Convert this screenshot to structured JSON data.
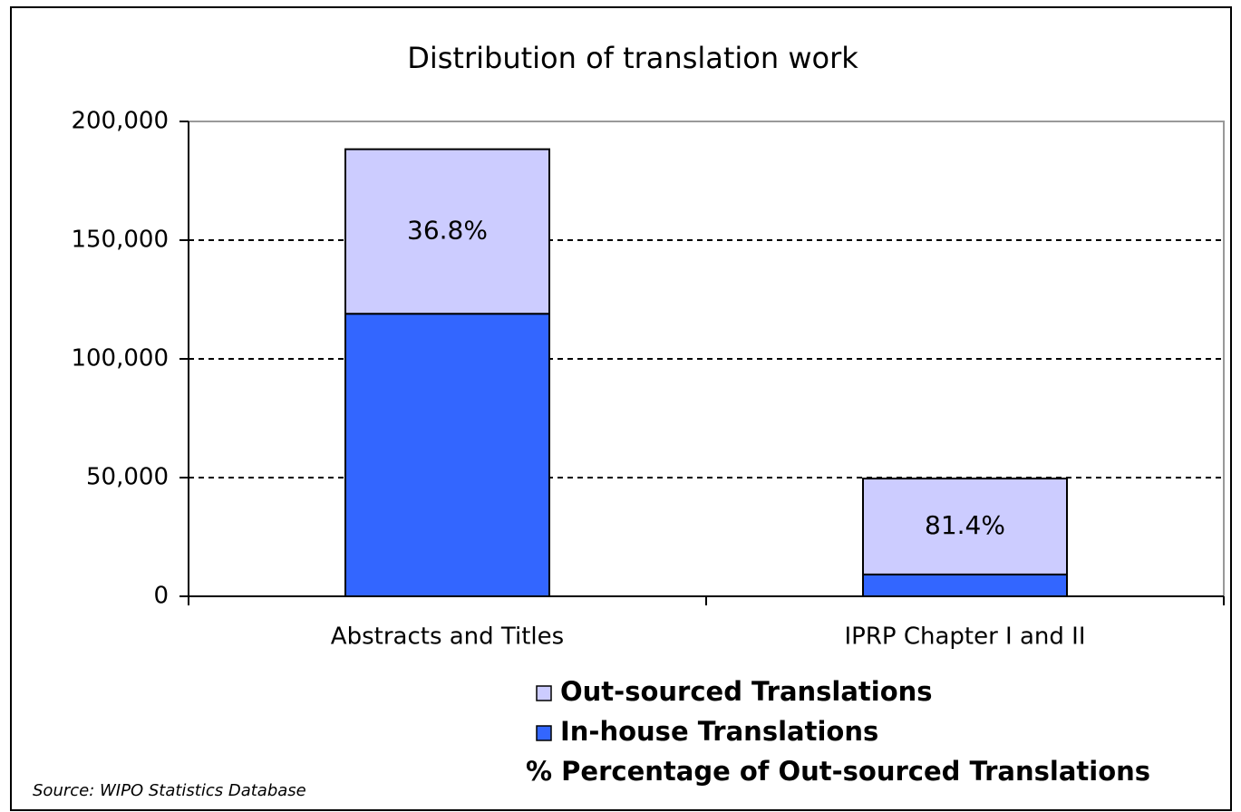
{
  "chart_data": {
    "type": "stacked_bar",
    "title": "Distribution of translation work",
    "categories": [
      "Abstracts and Titles",
      "IPRP Chapter I and II"
    ],
    "series": [
      {
        "name": "In-house Translations",
        "color": "#3366ff",
        "values": [
          119000,
          9200
        ]
      },
      {
        "name": "Out-sourced Translations",
        "color": "#ccccff",
        "values": [
          69300,
          40400
        ]
      }
    ],
    "percentages": {
      "name": "% Percentage of Out-sourced Translations",
      "values": [
        36.8,
        81.4
      ],
      "value_labels": [
        "36.8%",
        "81.4%"
      ]
    },
    "ylim": [
      0,
      200000
    ],
    "yticks": [
      0,
      {
        "value": 50000,
        "label": "50,000"
      },
      {
        "value": 100000,
        "label": "100,000"
      },
      {
        "value": 150000,
        "label": "150,000"
      },
      {
        "value": 200000,
        "label": "200,000"
      }
    ],
    "grid": true,
    "source": "Source: WIPO Statistics Database"
  }
}
